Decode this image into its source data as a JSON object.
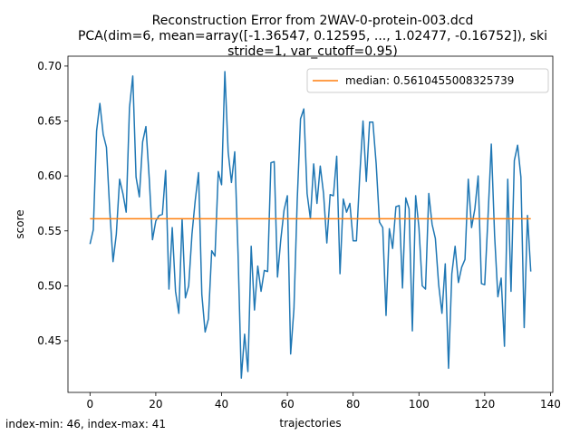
{
  "chart_data": {
    "type": "line",
    "title_lines": [
      "Reconstruction Error from 2WAV-0-protein-003.dcd",
      "PCA(dim=6, mean=array([-1.36547,  0.12595, ...,  1.02477, -0.16752]), ski",
      "stride=1, var_cutoff=0.95)"
    ],
    "xlabel": "trajectories",
    "ylabel": "score",
    "xlim": [
      -6.7,
      140.7
    ],
    "ylim": [
      0.403,
      0.709
    ],
    "xticks": [
      0,
      20,
      40,
      60,
      80,
      100,
      120,
      140
    ],
    "yticks": [
      0.45,
      0.5,
      0.55,
      0.6,
      0.65,
      0.7
    ],
    "ytick_labels": [
      "0.45",
      "0.50",
      "0.55",
      "0.60",
      "0.65",
      "0.70"
    ],
    "grid": false,
    "legend_position": "top-right",
    "series": [
      {
        "color": "#1f77b4",
        "values": [
          0.538,
          0.551,
          0.641,
          0.666,
          0.638,
          0.626,
          0.569,
          0.522,
          0.547,
          0.597,
          0.584,
          0.567,
          0.662,
          0.691,
          0.599,
          0.581,
          0.631,
          0.645,
          0.598,
          0.542,
          0.559,
          0.564,
          0.565,
          0.605,
          0.497,
          0.553,
          0.495,
          0.475,
          0.561,
          0.489,
          0.5,
          0.547,
          0.578,
          0.603,
          0.492,
          0.458,
          0.47,
          0.532,
          0.527,
          0.604,
          0.592,
          0.695,
          0.622,
          0.594,
          0.622,
          0.53,
          0.416,
          0.456,
          0.422,
          0.536,
          0.478,
          0.518,
          0.495,
          0.514,
          0.513,
          0.612,
          0.613,
          0.508,
          0.542,
          0.569,
          0.582,
          0.438,
          0.479,
          0.578,
          0.652,
          0.661,
          0.584,
          0.561,
          0.611,
          0.575,
          0.609,
          0.584,
          0.539,
          0.583,
          0.582,
          0.618,
          0.511,
          0.579,
          0.567,
          0.575,
          0.541,
          0.541,
          0.6,
          0.65,
          0.595,
          0.649,
          0.649,
          0.611,
          0.558,
          0.553,
          0.473,
          0.552,
          0.534,
          0.572,
          0.573,
          0.498,
          0.58,
          0.57,
          0.459,
          0.582,
          0.553,
          0.5,
          0.497,
          0.584,
          0.556,
          0.543,
          0.501,
          0.475,
          0.52,
          0.425,
          0.511,
          0.536,
          0.503,
          0.517,
          0.524,
          0.597,
          0.553,
          0.57,
          0.6,
          0.502,
          0.501,
          0.563,
          0.629,
          0.546,
          0.49,
          0.507,
          0.445,
          0.597,
          0.495,
          0.614,
          0.628,
          0.599,
          0.462,
          0.564,
          0.513
        ]
      },
      {
        "name": "median: 0.5610455008325739",
        "color": "#ff7f0e",
        "values": [
          0.5610455008325739,
          0.5610455008325739
        ],
        "x": [
          0,
          134
        ]
      }
    ]
  },
  "footer": {
    "note": "index-min: 46, index-max: 41"
  }
}
